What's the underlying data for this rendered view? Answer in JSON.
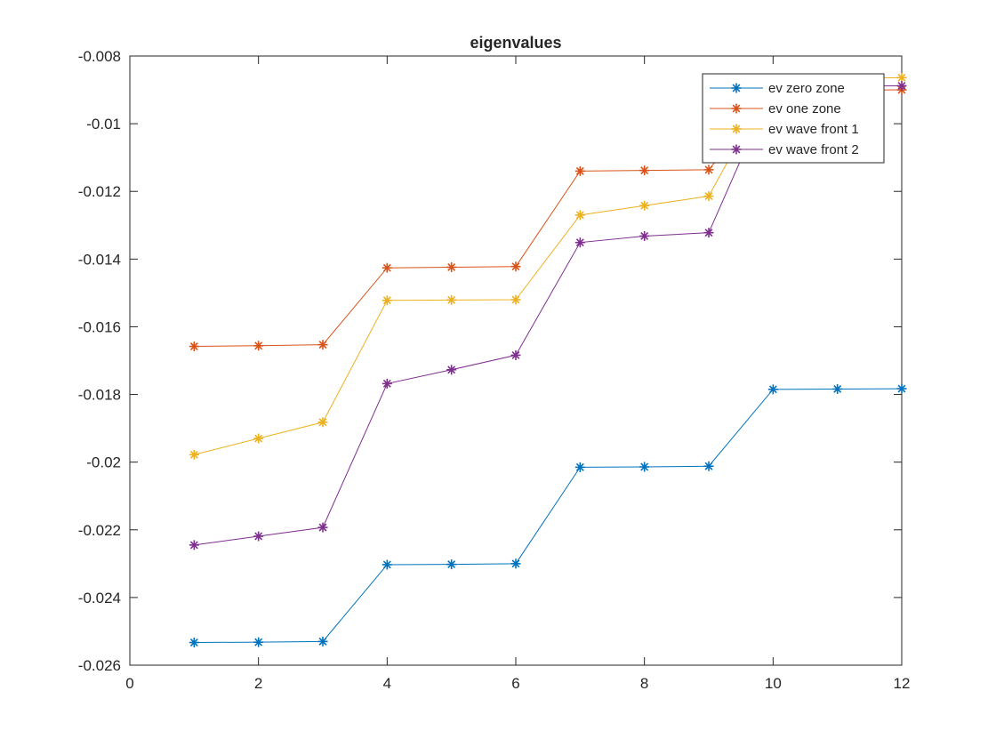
{
  "chart_data": {
    "type": "line",
    "title": "eigenvalues",
    "xlabel": "",
    "ylabel": "",
    "xlim": [
      0,
      12
    ],
    "ylim": [
      -0.026,
      -0.008
    ],
    "xticks": [
      0,
      2,
      4,
      6,
      8,
      10,
      12
    ],
    "xtick_labels": [
      "0",
      "2",
      "4",
      "6",
      "8",
      "10",
      "12"
    ],
    "yticks": [
      -0.026,
      -0.024,
      -0.022,
      -0.02,
      -0.018,
      -0.016,
      -0.014,
      -0.012,
      -0.01,
      -0.008
    ],
    "ytick_labels": [
      "-0.026",
      "-0.024",
      "-0.022",
      "-0.02",
      "-0.018",
      "-0.016",
      "-0.014",
      "-0.012",
      "-0.01",
      "-0.008"
    ],
    "grid": false,
    "legend_position": "top-right",
    "marker": "asterisk",
    "x": [
      1,
      2,
      3,
      4,
      5,
      6,
      7,
      8,
      9,
      10,
      11,
      12
    ],
    "series": [
      {
        "name": "ev zero zone",
        "color": "#0072bd",
        "values": [
          -0.02533,
          -0.02532,
          -0.0253,
          -0.02303,
          -0.02302,
          -0.023,
          -0.02015,
          -0.02014,
          -0.02012,
          -0.01785,
          -0.01784,
          -0.01783
        ]
      },
      {
        "name": "ev one zone",
        "color": "#d95319",
        "values": [
          -0.01658,
          -0.01656,
          -0.01653,
          -0.01426,
          -0.01424,
          -0.01422,
          -0.0114,
          -0.01138,
          -0.01136,
          -0.00903,
          -0.00901,
          -0.009
        ]
      },
      {
        "name": "ev wave front 1",
        "color": "#edb120",
        "values": [
          -0.01978,
          -0.0193,
          -0.01882,
          -0.01522,
          -0.01521,
          -0.0152,
          -0.0127,
          -0.01242,
          -0.01214,
          -0.00868,
          -0.00866,
          -0.00864
        ]
      },
      {
        "name": "ev wave front 2",
        "color": "#7e2f8e",
        "values": [
          -0.02245,
          -0.02219,
          -0.02193,
          -0.01768,
          -0.01727,
          -0.01684,
          -0.01351,
          -0.01332,
          -0.01322,
          -0.0089,
          -0.00889,
          -0.00888
        ]
      }
    ]
  }
}
